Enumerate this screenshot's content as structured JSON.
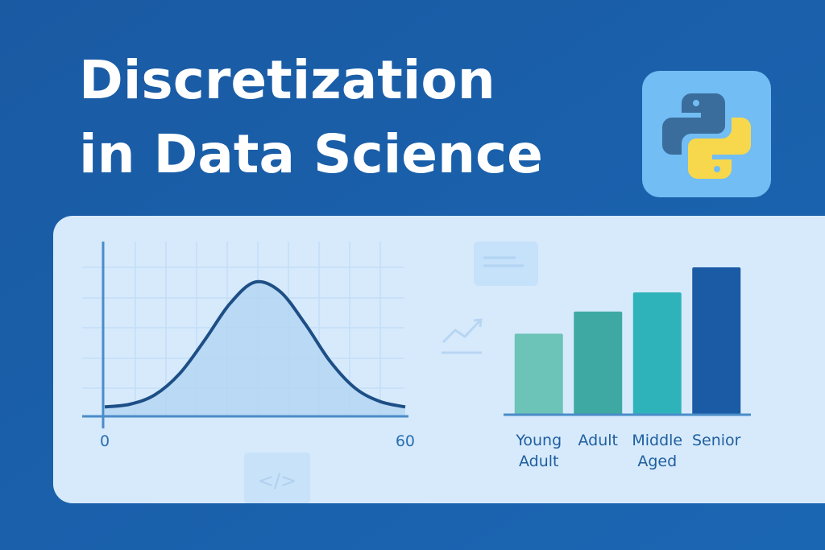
{
  "header": {
    "title_lines": [
      "Discretization",
      "in Data Science"
    ]
  },
  "code_icon": "</>",
  "curve_chart": {
    "type": "area",
    "x": [
      0,
      5,
      10,
      15,
      20,
      25,
      30,
      35,
      40,
      45,
      50,
      55,
      60
    ],
    "values": [
      0.07,
      0.09,
      0.16,
      0.32,
      0.57,
      0.84,
      1.0,
      0.93,
      0.69,
      0.41,
      0.21,
      0.11,
      0.07
    ],
    "xlim": [
      0,
      60
    ],
    "xticks": [
      0,
      60
    ],
    "ylim": [
      0,
      1.05
    ],
    "line_color": "#1d4f86",
    "fill_color": "#b3d5f3"
  },
  "bar_chart": {
    "type": "bar",
    "categories": [
      [
        "Young",
        "Adult"
      ],
      [
        "Adult"
      ],
      [
        "Middle",
        "Aged"
      ],
      [
        "Senior"
      ]
    ],
    "values": [
      55,
      70,
      83,
      100
    ],
    "ylim": [
      0,
      100
    ],
    "colors": [
      "#6cc3b8",
      "#3ea9a3",
      "#2fb3bb",
      "#1b5aa5"
    ]
  }
}
